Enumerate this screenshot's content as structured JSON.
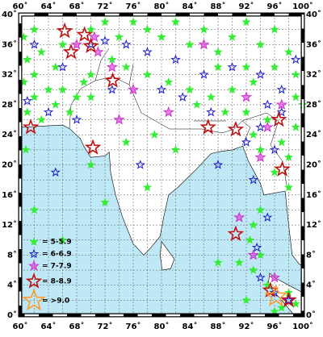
{
  "map": {
    "lon_ticks": [
      {
        "value": 60,
        "label": "60˚"
      },
      {
        "value": 64,
        "label": "64˚"
      },
      {
        "value": 68,
        "label": "68˚"
      },
      {
        "value": 72,
        "label": "72˚"
      },
      {
        "value": 76,
        "label": "76˚"
      },
      {
        "value": 80,
        "label": "80˚"
      },
      {
        "value": 84,
        "label": "84˚"
      },
      {
        "value": 88,
        "label": "88˚"
      },
      {
        "value": 92,
        "label": "92˚"
      },
      {
        "value": 96,
        "label": "96˚"
      },
      {
        "value": 100,
        "label": "100˚"
      }
    ],
    "lat_ticks": [
      {
        "value": 0,
        "label": "0˚"
      },
      {
        "value": 4,
        "label": "4˚"
      },
      {
        "value": 8,
        "label": "8˚"
      },
      {
        "value": 12,
        "label": "12˚"
      },
      {
        "value": 16,
        "label": "16˚"
      },
      {
        "value": 20,
        "label": "20˚"
      },
      {
        "value": 24,
        "label": "24˚"
      },
      {
        "value": 28,
        "label": "28˚"
      },
      {
        "value": 32,
        "label": "32˚"
      },
      {
        "value": 36,
        "label": "36˚"
      },
      {
        "value": 40,
        "label": "40˚"
      }
    ],
    "legend": [
      {
        "label": "= 5-5.9",
        "color": "#33ee33",
        "filled": true
      },
      {
        "label": "= 6-6.9",
        "color": "#1a1ad0",
        "filled": false
      },
      {
        "label": "= 7-7.9",
        "color": "#d030d0",
        "filled": true
      },
      {
        "label": "= 8-8.9",
        "color": "#c01010",
        "filled": false
      },
      {
        "label": "= >9.0",
        "color": "#ff9a2a",
        "filled": false
      }
    ],
    "events": [
      [
        61,
        27,
        0
      ],
      [
        62,
        29,
        0
      ],
      [
        63,
        26,
        0
      ],
      [
        64,
        30,
        0
      ],
      [
        65,
        28,
        0
      ],
      [
        66,
        30,
        0
      ],
      [
        67,
        27,
        0
      ],
      [
        68,
        29,
        0
      ],
      [
        69,
        31,
        0
      ],
      [
        61,
        34,
        0
      ],
      [
        63,
        35,
        0
      ],
      [
        65,
        33,
        0
      ],
      [
        60.5,
        37,
        0
      ],
      [
        62,
        38,
        0
      ],
      [
        66,
        36,
        0
      ],
      [
        70,
        38,
        0
      ],
      [
        72,
        39,
        0
      ],
      [
        74,
        37,
        0
      ],
      [
        76,
        39,
        0
      ],
      [
        78,
        38,
        0
      ],
      [
        80,
        37,
        0
      ],
      [
        82,
        39,
        0
      ],
      [
        84,
        36,
        0
      ],
      [
        86,
        38,
        0
      ],
      [
        88,
        35,
        0
      ],
      [
        90,
        37,
        0
      ],
      [
        92,
        39,
        0
      ],
      [
        94,
        36,
        0
      ],
      [
        96,
        38,
        0
      ],
      [
        98,
        35,
        0
      ],
      [
        99,
        32,
        0
      ],
      [
        96,
        33,
        0
      ],
      [
        93,
        31,
        0
      ],
      [
        90,
        30,
        0
      ],
      [
        87,
        29,
        0
      ],
      [
        84,
        30,
        0
      ],
      [
        81,
        31,
        0
      ],
      [
        78,
        32,
        0
      ],
      [
        75,
        33,
        0
      ],
      [
        73,
        34,
        0
      ],
      [
        70,
        29,
        0
      ],
      [
        70,
        32,
        0
      ],
      [
        62,
        32,
        0
      ],
      [
        60.5,
        31,
        0
      ],
      [
        93,
        24,
        0
      ],
      [
        94,
        22,
        0
      ],
      [
        95,
        26,
        0
      ],
      [
        97,
        23,
        0
      ],
      [
        99,
        25,
        0
      ],
      [
        98,
        21,
        0
      ],
      [
        96,
        19,
        0
      ],
      [
        92,
        27,
        0
      ],
      [
        89,
        27,
        0
      ],
      [
        85,
        28,
        0
      ],
      [
        100,
        28,
        0
      ],
      [
        99,
        29,
        0
      ],
      [
        94,
        14,
        0
      ],
      [
        93,
        12,
        0
      ],
      [
        92.5,
        10,
        0
      ],
      [
        94,
        8,
        0
      ],
      [
        93,
        6,
        0
      ],
      [
        95,
        4,
        0
      ],
      [
        97,
        1,
        0
      ],
      [
        98,
        3,
        0
      ],
      [
        99,
        1.5,
        0
      ],
      [
        96,
        0.5,
        0
      ],
      [
        92,
        2,
        0
      ],
      [
        91,
        7,
        0
      ],
      [
        70,
        20,
        0
      ],
      [
        66,
        10,
        0
      ],
      [
        62,
        14,
        0
      ],
      [
        79,
        24,
        0
      ],
      [
        75,
        23,
        0
      ],
      [
        82,
        22,
        0
      ],
      [
        78,
        17,
        0
      ],
      [
        72,
        15,
        0
      ],
      [
        88,
        7,
        0
      ],
      [
        98,
        17,
        0
      ],
      [
        60.8,
        22,
        0
      ],
      [
        92,
        33,
        0
      ],
      [
        88,
        33,
        0
      ],
      [
        61,
        28.5,
        1
      ],
      [
        64,
        27,
        1
      ],
      [
        66,
        33,
        1
      ],
      [
        70,
        36,
        1
      ],
      [
        72,
        36.5,
        1
      ],
      [
        75,
        36,
        1
      ],
      [
        78,
        35,
        1
      ],
      [
        82,
        34,
        1
      ],
      [
        86,
        32,
        1
      ],
      [
        90,
        33,
        1
      ],
      [
        94,
        32,
        1
      ],
      [
        97,
        30,
        1
      ],
      [
        95,
        28,
        1
      ],
      [
        94,
        25,
        1
      ],
      [
        92,
        23,
        1
      ],
      [
        96,
        22,
        1
      ],
      [
        93,
        18,
        1
      ],
      [
        95,
        13,
        1
      ],
      [
        93.5,
        9,
        1
      ],
      [
        94,
        5,
        1
      ],
      [
        96,
        3,
        1
      ],
      [
        98,
        2,
        1
      ],
      [
        87,
        27,
        1
      ],
      [
        83,
        29,
        1
      ],
      [
        80,
        30,
        1
      ],
      [
        73,
        30,
        1
      ],
      [
        68,
        26,
        1
      ],
      [
        65,
        19,
        1
      ],
      [
        77,
        20,
        1
      ],
      [
        88,
        20,
        1
      ],
      [
        97,
        27,
        1
      ],
      [
        99,
        34,
        1
      ],
      [
        62,
        36,
        1
      ],
      [
        70.5,
        37,
        2
      ],
      [
        71,
        35,
        2
      ],
      [
        68,
        36,
        2
      ],
      [
        73,
        33,
        2
      ],
      [
        76,
        30,
        2
      ],
      [
        86,
        36,
        2
      ],
      [
        92,
        29,
        2
      ],
      [
        95,
        25,
        2
      ],
      [
        94,
        21,
        2
      ],
      [
        91,
        13,
        2
      ],
      [
        93,
        8,
        2
      ],
      [
        96,
        5,
        2
      ],
      [
        97,
        28,
        2
      ],
      [
        74,
        26,
        2
      ],
      [
        81,
        27,
        2
      ],
      [
        61.5,
        25,
        3
      ],
      [
        66.3,
        37.8,
        3
      ],
      [
        69.1,
        37.3,
        3
      ],
      [
        70,
        35.8,
        3
      ],
      [
        67.2,
        35,
        3
      ],
      [
        73.1,
        31.2,
        3
      ],
      [
        70.3,
        22.3,
        3
      ],
      [
        86.6,
        25,
        3
      ],
      [
        90.5,
        24.7,
        3
      ],
      [
        96.6,
        26,
        3
      ],
      [
        97.1,
        19.4,
        3
      ],
      [
        90.5,
        10.8,
        3
      ],
      [
        95.4,
        3.3,
        3
      ],
      [
        98,
        2,
        3
      ],
      [
        96.2,
        2.5,
        4
      ]
    ]
  }
}
